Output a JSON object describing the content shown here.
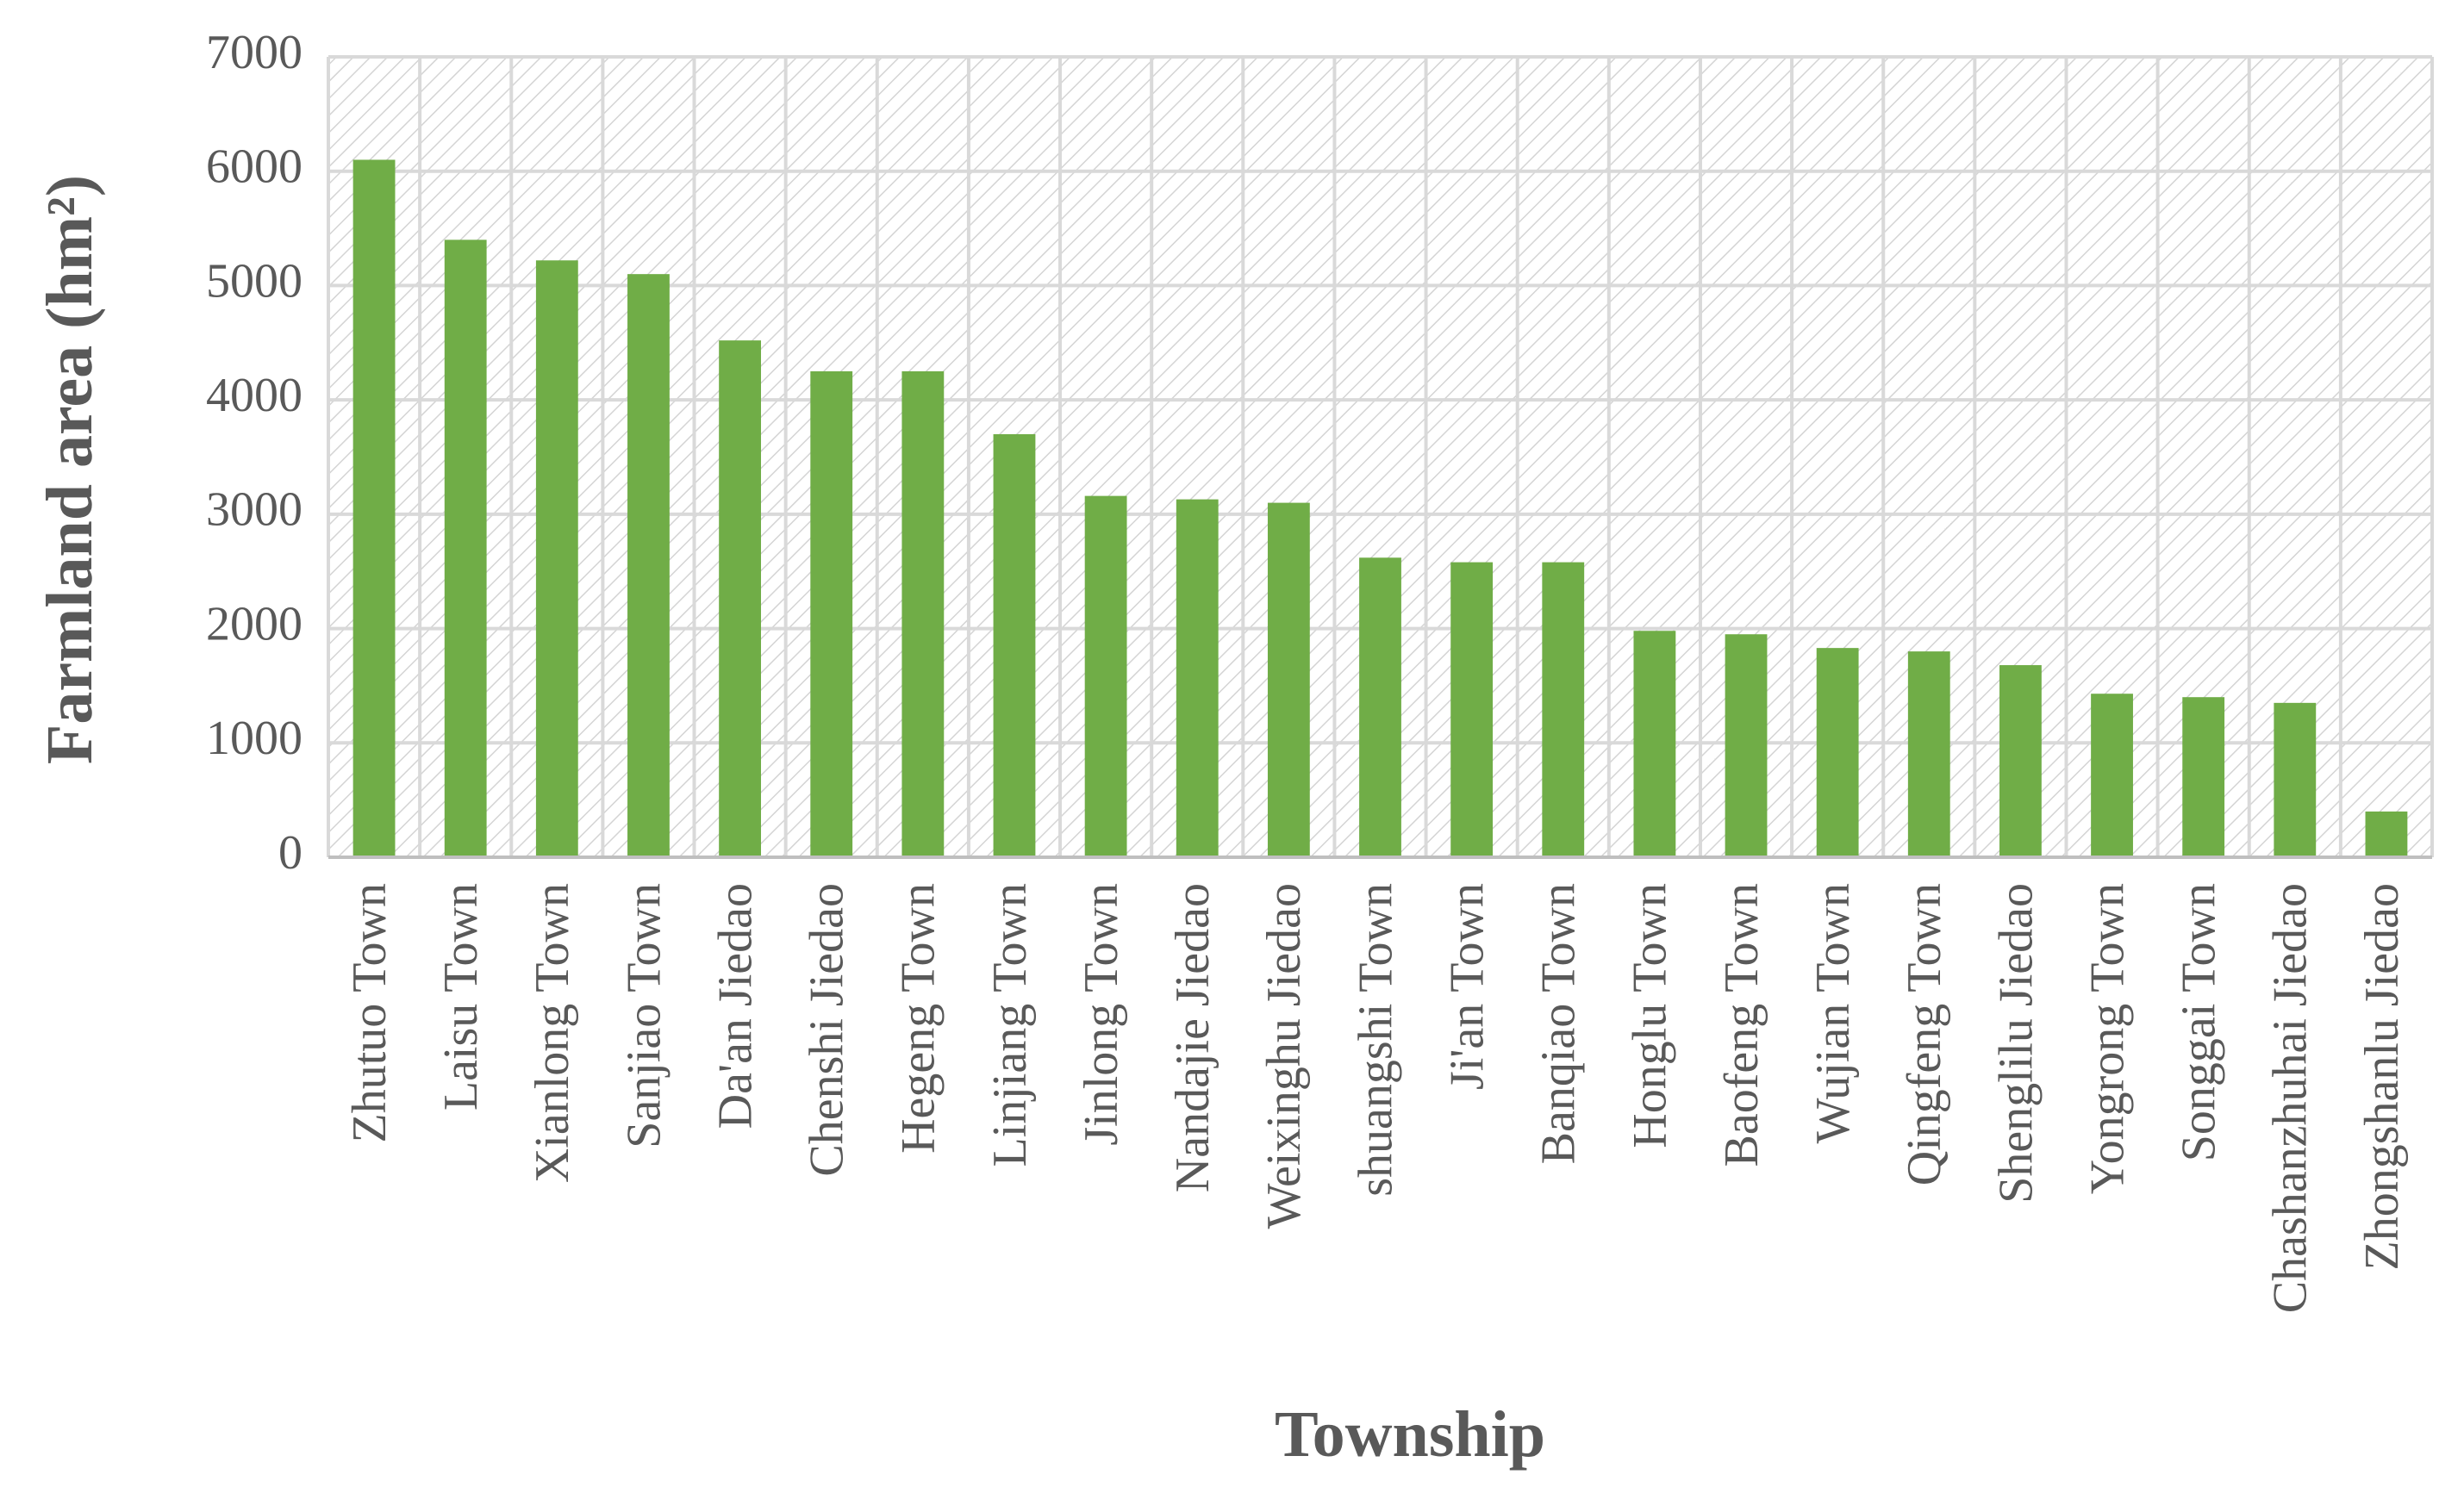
{
  "chart_data": {
    "type": "bar",
    "x_label": "Township",
    "y_label": "Farmland area (hm²)",
    "categories": [
      "Zhutuo Town",
      "Laisu Town",
      "Xianlong Town",
      "Sanjiao Town",
      "Da'an Jiedao",
      "Chenshi Jiedao",
      "Hegeng Town",
      "Linjiang Town",
      "Jinlong Town",
      "Nandajie Jiedao",
      "Weixinghu Jiedao",
      "shuangshi Town",
      "Ji'an Town",
      "Banqiao Town",
      "Honglu Town",
      "Baofeng Town",
      "Wujian Town",
      "Qingfeng Town",
      "Shenglilu Jiedao",
      "Yongrong Town",
      "Songgai Town",
      "Chashanzhuhai Jiedao",
      "Zhongshanlu Jiedao"
    ],
    "values": [
      6100,
      5400,
      5220,
      5100,
      4520,
      4250,
      4250,
      3700,
      3160,
      3130,
      3100,
      2620,
      2580,
      2580,
      1980,
      1950,
      1830,
      1800,
      1680,
      1430,
      1400,
      1350,
      400
    ],
    "color": "#70ad47",
    "ylim": [
      0,
      7000
    ],
    "yticks": [
      0,
      1000,
      2000,
      3000,
      4000,
      5000,
      6000,
      7000
    ],
    "grid": true
  }
}
